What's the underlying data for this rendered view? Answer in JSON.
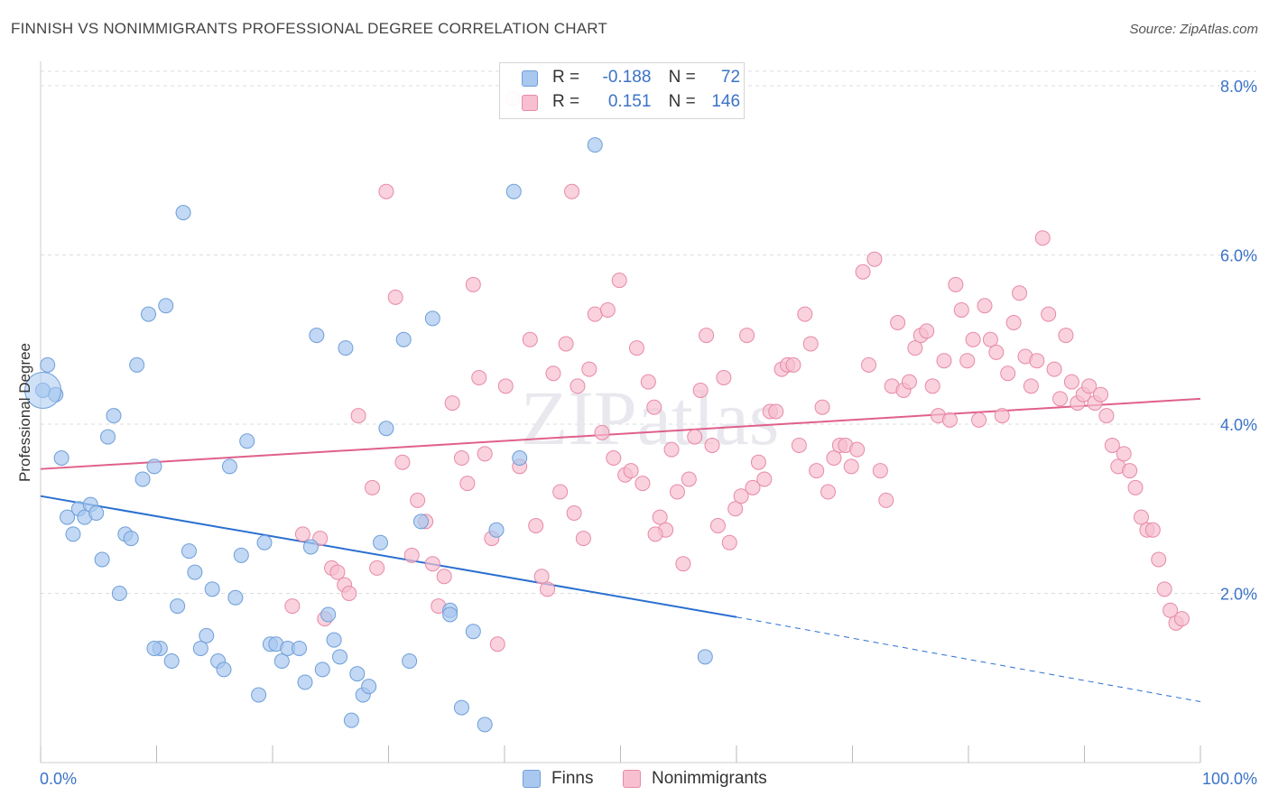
{
  "title": "FINNISH VS NONIMMIGRANTS PROFESSIONAL DEGREE CORRELATION CHART",
  "source": "Source: ZipAtlas.com",
  "watermark": "ZIPatlas",
  "legend": {
    "rows": [
      {
        "r_label": "R =",
        "r_value": "-0.188",
        "n_label": "N =",
        "n_value": "72"
      },
      {
        "r_label": "R =",
        "r_value": "0.151",
        "n_label": "N =",
        "n_value": "146"
      }
    ]
  },
  "bottom_legend": [
    "Finns",
    "Nonimmigrants"
  ],
  "colors": {
    "finns_fill": "#a8c8f0",
    "finns_stroke": "#6f9fd8",
    "finns_line": "#2a6fd0",
    "nonimm_fill": "#f7bfd0",
    "nonimm_stroke": "#e88aa8",
    "nonimm_line": "#e0608a",
    "axis_label": "#3a73c8",
    "grid": "#dddddd"
  },
  "chart_data": {
    "type": "scatter",
    "title": "FINNISH VS NONIMMIGRANTS PROFESSIONAL DEGREE CORRELATION CHART",
    "xlabel": "",
    "ylabel": "Professional Degree",
    "xlim": [
      0,
      100
    ],
    "ylim": [
      0,
      8.0
    ],
    "x_tick_labels": [
      "0.0%",
      "100.0%"
    ],
    "y_ticks": [
      2.0,
      4.0,
      6.0,
      8.0
    ],
    "y_tick_labels": [
      "2.0%",
      "4.0%",
      "6.0%",
      "8.0%"
    ],
    "grid": "horizontal dashed",
    "series": [
      {
        "name": "Finns",
        "r": -0.188,
        "n": 72,
        "trend": {
          "x": [
            0,
            60
          ],
          "y": [
            3.15,
            1.72
          ],
          "dashed_to": [
            100,
            0.72
          ]
        },
        "points": [
          [
            0.2,
            4.4
          ],
          [
            0.6,
            4.7
          ],
          [
            1.3,
            4.35
          ],
          [
            1.8,
            3.6
          ],
          [
            2.3,
            2.9
          ],
          [
            2.8,
            2.7
          ],
          [
            3.3,
            3.0
          ],
          [
            3.8,
            2.9
          ],
          [
            4.3,
            3.05
          ],
          [
            4.8,
            2.95
          ],
          [
            5.3,
            2.4
          ],
          [
            5.8,
            3.85
          ],
          [
            6.3,
            4.1
          ],
          [
            6.8,
            2.0
          ],
          [
            7.3,
            2.7
          ],
          [
            7.8,
            2.65
          ],
          [
            8.3,
            4.7
          ],
          [
            8.8,
            3.35
          ],
          [
            9.3,
            5.3
          ],
          [
            9.8,
            3.5
          ],
          [
            10.3,
            1.35
          ],
          [
            10.8,
            5.4
          ],
          [
            11.3,
            1.2
          ],
          [
            11.8,
            1.85
          ],
          [
            12.3,
            6.5
          ],
          [
            12.8,
            2.5
          ],
          [
            13.3,
            2.25
          ],
          [
            13.8,
            1.35
          ],
          [
            14.3,
            1.5
          ],
          [
            14.8,
            2.05
          ],
          [
            15.3,
            1.2
          ],
          [
            15.8,
            1.1
          ],
          [
            16.3,
            3.5
          ],
          [
            16.8,
            1.95
          ],
          [
            17.3,
            2.45
          ],
          [
            17.8,
            3.8
          ],
          [
            18.8,
            0.8
          ],
          [
            19.3,
            2.6
          ],
          [
            19.8,
            1.4
          ],
          [
            20.3,
            1.4
          ],
          [
            20.8,
            1.2
          ],
          [
            21.3,
            1.35
          ],
          [
            22.3,
            1.35
          ],
          [
            22.8,
            0.95
          ],
          [
            23.3,
            2.55
          ],
          [
            23.8,
            5.05
          ],
          [
            24.3,
            1.1
          ],
          [
            24.8,
            1.75
          ],
          [
            25.3,
            1.45
          ],
          [
            25.8,
            1.25
          ],
          [
            26.3,
            4.9
          ],
          [
            26.8,
            0.5
          ],
          [
            27.3,
            1.05
          ],
          [
            27.8,
            0.8
          ],
          [
            28.3,
            0.9
          ],
          [
            29.3,
            2.6
          ],
          [
            29.8,
            3.95
          ],
          [
            31.3,
            5.0
          ],
          [
            32.8,
            2.85
          ],
          [
            33.8,
            5.25
          ],
          [
            35.3,
            1.8
          ],
          [
            35.3,
            1.75
          ],
          [
            36.3,
            0.65
          ],
          [
            37.3,
            1.55
          ],
          [
            38.3,
            0.45
          ],
          [
            39.3,
            2.75
          ],
          [
            40.8,
            6.75
          ],
          [
            41.3,
            3.6
          ],
          [
            47.8,
            7.3
          ],
          [
            57.3,
            1.25
          ],
          [
            9.8,
            1.35
          ],
          [
            31.8,
            1.2
          ]
        ]
      },
      {
        "name": "Nonimmigrants",
        "r": 0.151,
        "n": 146,
        "trend": {
          "x": [
            0,
            100
          ],
          "y": [
            3.47,
            4.3
          ]
        },
        "points": [
          [
            21.7,
            1.85
          ],
          [
            24.1,
            2.65
          ],
          [
            24.5,
            1.7
          ],
          [
            25.1,
            2.3
          ],
          [
            25.6,
            2.25
          ],
          [
            26.2,
            2.1
          ],
          [
            26.6,
            2.0
          ],
          [
            27.4,
            4.1
          ],
          [
            28.6,
            3.25
          ],
          [
            29.0,
            2.3
          ],
          [
            29.8,
            6.75
          ],
          [
            30.6,
            5.5
          ],
          [
            31.2,
            3.55
          ],
          [
            32.5,
            3.1
          ],
          [
            33.2,
            2.85
          ],
          [
            33.8,
            2.35
          ],
          [
            34.3,
            1.85
          ],
          [
            34.8,
            2.2
          ],
          [
            35.5,
            4.25
          ],
          [
            36.3,
            3.6
          ],
          [
            36.8,
            3.3
          ],
          [
            37.3,
            5.65
          ],
          [
            37.8,
            4.55
          ],
          [
            38.3,
            3.65
          ],
          [
            38.9,
            2.65
          ],
          [
            39.4,
            1.4
          ],
          [
            40.1,
            4.45
          ],
          [
            40.7,
            7.85
          ],
          [
            41.3,
            3.5
          ],
          [
            42.2,
            5.0
          ],
          [
            42.7,
            2.8
          ],
          [
            43.2,
            2.2
          ],
          [
            43.7,
            2.05
          ],
          [
            44.2,
            4.6
          ],
          [
            44.8,
            3.2
          ],
          [
            45.3,
            4.95
          ],
          [
            45.8,
            6.75
          ],
          [
            46.3,
            4.45
          ],
          [
            46.8,
            2.65
          ],
          [
            47.3,
            4.65
          ],
          [
            47.8,
            5.3
          ],
          [
            48.4,
            3.9
          ],
          [
            48.9,
            5.35
          ],
          [
            49.4,
            3.6
          ],
          [
            49.9,
            5.7
          ],
          [
            50.4,
            3.4
          ],
          [
            50.9,
            3.45
          ],
          [
            51.4,
            4.9
          ],
          [
            51.9,
            3.3
          ],
          [
            52.4,
            4.5
          ],
          [
            52.9,
            4.2
          ],
          [
            53.4,
            2.9
          ],
          [
            53.9,
            2.75
          ],
          [
            54.4,
            3.7
          ],
          [
            54.9,
            3.2
          ],
          [
            55.4,
            2.35
          ],
          [
            55.9,
            3.35
          ],
          [
            56.4,
            3.85
          ],
          [
            56.9,
            4.4
          ],
          [
            57.4,
            5.05
          ],
          [
            57.9,
            3.75
          ],
          [
            58.4,
            2.8
          ],
          [
            58.9,
            4.55
          ],
          [
            59.4,
            2.6
          ],
          [
            59.9,
            3.0
          ],
          [
            60.4,
            3.15
          ],
          [
            60.9,
            5.05
          ],
          [
            61.4,
            3.25
          ],
          [
            61.9,
            3.55
          ],
          [
            62.4,
            3.35
          ],
          [
            62.9,
            4.15
          ],
          [
            63.4,
            4.15
          ],
          [
            63.9,
            4.65
          ],
          [
            64.4,
            4.7
          ],
          [
            64.9,
            4.7
          ],
          [
            65.4,
            3.75
          ],
          [
            65.9,
            5.3
          ],
          [
            66.4,
            4.95
          ],
          [
            66.9,
            3.45
          ],
          [
            67.4,
            4.2
          ],
          [
            67.9,
            3.2
          ],
          [
            68.4,
            3.6
          ],
          [
            68.9,
            3.75
          ],
          [
            69.4,
            3.75
          ],
          [
            69.9,
            3.5
          ],
          [
            70.4,
            3.7
          ],
          [
            70.9,
            5.8
          ],
          [
            71.4,
            4.7
          ],
          [
            71.9,
            5.95
          ],
          [
            72.4,
            3.45
          ],
          [
            72.9,
            3.1
          ],
          [
            73.4,
            4.45
          ],
          [
            73.9,
            5.2
          ],
          [
            74.4,
            4.4
          ],
          [
            74.9,
            4.5
          ],
          [
            75.4,
            4.9
          ],
          [
            75.9,
            5.05
          ],
          [
            76.4,
            5.1
          ],
          [
            76.9,
            4.45
          ],
          [
            77.4,
            4.1
          ],
          [
            77.9,
            4.75
          ],
          [
            78.4,
            4.05
          ],
          [
            78.9,
            5.65
          ],
          [
            79.4,
            5.35
          ],
          [
            79.9,
            4.75
          ],
          [
            80.4,
            5.0
          ],
          [
            80.9,
            4.05
          ],
          [
            81.4,
            5.4
          ],
          [
            81.9,
            5.0
          ],
          [
            82.4,
            4.85
          ],
          [
            82.9,
            4.1
          ],
          [
            83.4,
            4.6
          ],
          [
            83.9,
            5.2
          ],
          [
            84.4,
            5.55
          ],
          [
            84.9,
            4.8
          ],
          [
            85.4,
            4.45
          ],
          [
            85.9,
            4.75
          ],
          [
            86.4,
            6.2
          ],
          [
            86.9,
            5.3
          ],
          [
            87.4,
            4.65
          ],
          [
            87.9,
            4.3
          ],
          [
            88.4,
            5.05
          ],
          [
            88.9,
            4.5
          ],
          [
            89.4,
            4.25
          ],
          [
            89.9,
            4.35
          ],
          [
            90.4,
            4.45
          ],
          [
            90.9,
            4.25
          ],
          [
            91.4,
            4.35
          ],
          [
            91.9,
            4.1
          ],
          [
            92.4,
            3.75
          ],
          [
            92.9,
            3.5
          ],
          [
            93.4,
            3.65
          ],
          [
            93.9,
            3.45
          ],
          [
            94.4,
            3.25
          ],
          [
            94.9,
            2.9
          ],
          [
            95.4,
            2.75
          ],
          [
            95.9,
            2.75
          ],
          [
            96.4,
            2.4
          ],
          [
            96.9,
            2.05
          ],
          [
            97.4,
            1.8
          ],
          [
            97.9,
            1.65
          ],
          [
            98.4,
            1.7
          ],
          [
            22.6,
            2.7
          ],
          [
            32.0,
            2.45
          ],
          [
            46.0,
            2.95
          ],
          [
            53.0,
            2.7
          ]
        ]
      }
    ]
  }
}
